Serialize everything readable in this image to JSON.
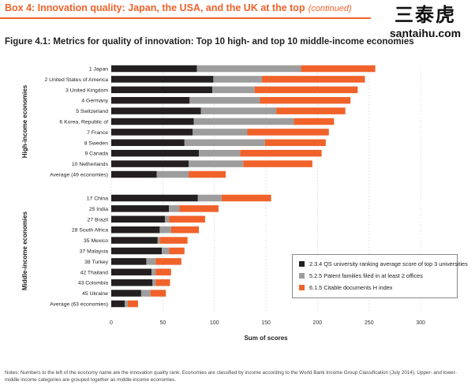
{
  "header": {
    "box_title": "Box 4: Innovation quality: Japan, the USA, and the UK at the top",
    "box_continued": "(continued)"
  },
  "watermark": {
    "chinese": "三泰虎",
    "site": "santaihu.com"
  },
  "figure_title": "Figure 4.1: Metrics for quality of innovation: Top 10 high- and top 10 middle-income economies",
  "notes": "Notes: Numbers to the left of the economy name are the innovation quality rank. Economies are classified by income according to the World Bank Income Group Classification (July 2014). Upper- and lower-middle income categories are grouped together as middle-income economies.",
  "colors": {
    "university": "#231f20",
    "patents": "#9d9d9d",
    "citable": "#f0622a",
    "accent": "#f0622a"
  },
  "chart_data": {
    "type": "bar",
    "orientation": "horizontal",
    "stacked": true,
    "xlabel": "Sum of scores",
    "xlim": [
      0,
      300
    ],
    "xticks": [
      0,
      50,
      100,
      150,
      200,
      250,
      300
    ],
    "grid": true,
    "legend_position": "bottom-right",
    "groups": [
      {
        "name": "High-income economies",
        "categories": [
          "1 Japan",
          "2 United States of America",
          "3 United Kingdom",
          "4 Germany",
          "5 Switzerland",
          "6 Korea, Republic of",
          "7 France",
          "8 Sweden",
          "9 Canada",
          "10 Netherlands",
          "Average (49 economies)"
        ],
        "series": [
          {
            "name": "2.3.4 QS university ranking average score of top 3 universities",
            "values": [
              83,
              99,
              98,
              76,
              87,
              80,
              79,
              71,
              85,
              75,
              44
            ]
          },
          {
            "name": "5.2.5 Patent families filed in at least 2 offices",
            "values": [
              101,
              47,
              41,
              68,
              73,
              97,
              53,
              78,
              40,
              53,
              31
            ]
          },
          {
            "name": "6.1.5 Citable documents H index",
            "values": [
              72,
              100,
              100,
              88,
              67,
              39,
              79,
              59,
              79,
              67,
              36
            ]
          }
        ]
      },
      {
        "name": "Middle-income economies",
        "categories": [
          "17 China",
          "25 India",
          "27 Brazil",
          "28 South Africa",
          "35 Mexico",
          "37 Malaysia",
          "38 Turkey",
          "42 Thailand",
          "43 Colombia",
          "45 Ukraine",
          "Average (63 economies)"
        ],
        "series": [
          {
            "name": "2.3.4 QS university ranking average score of top 3 universities",
            "values": [
              84,
              56,
              52,
              47,
              45,
              49,
              34,
              39,
              40,
              29,
              13
            ]
          },
          {
            "name": "5.2.5 Patent families filed in at least 2 offices",
            "values": [
              23,
              10,
              4,
              11,
              2,
              7,
              9,
              4,
              3,
              9,
              3
            ]
          },
          {
            "name": "6.1.5 Citable documents H index",
            "values": [
              48,
              38,
              35,
              27,
              27,
              15,
              25,
              15,
              14,
              15,
              10
            ]
          }
        ]
      }
    ]
  }
}
